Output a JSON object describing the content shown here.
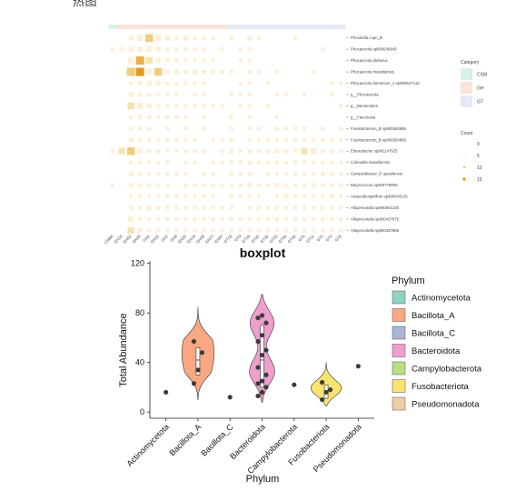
{
  "header_text": "热图",
  "heatmap": {
    "category_legend": {
      "title": "Category",
      "items": [
        {
          "label": "CSM",
          "color": "#d7f0ec"
        },
        {
          "label": "GH",
          "color": "#fde3d8"
        },
        {
          "label": "GT",
          "color": "#e5e8f5"
        }
      ]
    },
    "count_legend": {
      "title": "Count",
      "items": [
        {
          "label": "0",
          "color": "#ffffff"
        },
        {
          "label": "5",
          "color": "#f6e7b8"
        },
        {
          "label": "10",
          "color": "#efc66f"
        },
        {
          "label": "15",
          "color": "#e39a1c"
        }
      ]
    },
    "row_labels": [
      "Prevotella copri_B",
      "Phocaeicola sp900546645",
      "Phocaeicola plebeius",
      "Phocaeicola massiliensis",
      "Phocaeicola bacterium_A sp900547415",
      "g__Phocaeicola",
      "g__Bacteroides",
      "g__Faecousia",
      "Fusobacterium_B sp900554885",
      "Fusobacterium_B sp900554885",
      "Enterobacter sp901147625",
      "Colinsella massiliensis",
      "Campylobacter_D upsaliensis",
      "Butyricoccus sp900776805",
      "Anaerobiospirillum sp900543125",
      "Alloprevotella sp900541330",
      "Alloprevotella sp900437875",
      "Alloprevotella sp900437865"
    ],
    "col_labels": [
      "CSM6",
      "GH10",
      "GH50",
      "GH30",
      "GH4",
      "GH15",
      "GH2",
      "GH9",
      "GH20",
      "GH18",
      "GH38",
      "GH27",
      "GH97",
      "GT19",
      "GT9",
      "GT28",
      "GT26",
      "GT30",
      "GT25",
      "GT56",
      "GT35",
      "GT6",
      "GT11",
      "GT5",
      "GT4",
      "GT8"
    ],
    "col_category": [
      "CSM",
      "GH",
      "GH",
      "GH",
      "GH",
      "GH",
      "GH",
      "GH",
      "GH",
      "GH",
      "GH",
      "GH",
      "GH",
      "GT",
      "GT",
      "GT",
      "GT",
      "GT",
      "GT",
      "GT",
      "GT",
      "GT",
      "GT",
      "GT",
      "GT",
      "GT"
    ],
    "counts": [
      [
        0,
        0,
        2,
        4,
        8,
        4,
        2,
        1,
        2,
        1,
        1,
        1,
        0,
        1,
        0,
        2,
        1,
        0,
        0,
        0,
        1,
        0,
        0,
        0,
        0,
        0
      ],
      [
        1,
        1,
        2,
        3,
        4,
        2,
        1,
        1,
        1,
        1,
        1,
        0,
        1,
        0,
        1,
        1,
        0,
        0,
        0,
        0,
        0,
        0,
        0,
        1,
        0,
        0
      ],
      [
        0,
        0,
        4,
        12,
        6,
        2,
        1,
        1,
        1,
        1,
        1,
        1,
        0,
        0,
        1,
        1,
        0,
        0,
        0,
        0,
        0,
        0,
        0,
        0,
        0,
        0
      ],
      [
        0,
        0,
        10,
        14,
        4,
        8,
        1,
        2,
        1,
        2,
        1,
        1,
        1,
        1,
        0,
        1,
        1,
        0,
        1,
        0,
        0,
        0,
        1,
        0,
        0,
        0
      ],
      [
        0,
        0,
        1,
        2,
        2,
        2,
        1,
        1,
        1,
        1,
        1,
        0,
        0,
        0,
        1,
        1,
        0,
        1,
        0,
        0,
        0,
        0,
        0,
        0,
        1,
        1
      ],
      [
        0,
        0,
        2,
        1,
        1,
        1,
        1,
        1,
        0,
        1,
        1,
        0,
        0,
        1,
        1,
        1,
        0,
        0,
        1,
        1,
        0,
        1,
        0,
        0,
        1,
        0
      ],
      [
        0,
        0,
        6,
        4,
        2,
        1,
        1,
        1,
        1,
        1,
        1,
        1,
        1,
        0,
        1,
        1,
        0,
        1,
        0,
        0,
        0,
        0,
        0,
        0,
        0,
        1
      ],
      [
        0,
        0,
        1,
        2,
        1,
        1,
        1,
        1,
        1,
        0,
        1,
        0,
        0,
        1,
        0,
        1,
        0,
        0,
        1,
        0,
        0,
        0,
        0,
        0,
        0,
        0
      ],
      [
        0,
        0,
        1,
        1,
        1,
        0,
        1,
        0,
        1,
        0,
        1,
        0,
        0,
        1,
        0,
        1,
        1,
        0,
        1,
        1,
        1,
        1,
        0,
        1,
        0,
        1
      ],
      [
        0,
        0,
        2,
        1,
        1,
        1,
        1,
        1,
        1,
        1,
        0,
        1,
        1,
        1,
        0,
        1,
        1,
        1,
        1,
        1,
        1,
        1,
        1,
        1,
        1,
        1
      ],
      [
        1,
        5,
        8,
        2,
        1,
        1,
        1,
        1,
        1,
        1,
        1,
        0,
        1,
        2,
        1,
        1,
        1,
        1,
        2,
        1,
        1,
        5,
        4,
        1,
        1,
        1
      ],
      [
        0,
        0,
        1,
        1,
        1,
        1,
        1,
        0,
        1,
        1,
        0,
        1,
        1,
        1,
        1,
        1,
        1,
        1,
        1,
        1,
        1,
        1,
        1,
        1,
        1,
        1
      ],
      [
        0,
        0,
        2,
        1,
        1,
        1,
        1,
        1,
        1,
        0,
        1,
        1,
        0,
        2,
        1,
        1,
        0,
        1,
        1,
        1,
        1,
        1,
        1,
        1,
        1,
        1
      ],
      [
        1,
        0,
        2,
        1,
        1,
        1,
        1,
        0,
        1,
        1,
        1,
        1,
        1,
        1,
        1,
        2,
        1,
        1,
        2,
        1,
        1,
        1,
        1,
        1,
        1,
        1
      ],
      [
        0,
        0,
        1,
        1,
        1,
        1,
        1,
        1,
        1,
        1,
        1,
        1,
        0,
        2,
        1,
        1,
        1,
        0,
        1,
        2,
        1,
        1,
        1,
        1,
        2,
        1
      ],
      [
        0,
        0,
        1,
        1,
        3,
        1,
        1,
        1,
        1,
        1,
        1,
        1,
        1,
        1,
        0,
        1,
        1,
        1,
        1,
        1,
        1,
        1,
        1,
        1,
        1,
        1
      ],
      [
        0,
        0,
        3,
        1,
        1,
        1,
        1,
        1,
        1,
        1,
        1,
        1,
        1,
        1,
        1,
        1,
        1,
        1,
        1,
        1,
        1,
        1,
        1,
        1,
        1,
        1
      ],
      [
        0,
        0,
        5,
        2,
        1,
        1,
        1,
        1,
        1,
        1,
        1,
        1,
        1,
        1,
        1,
        1,
        1,
        1,
        1,
        1,
        1,
        1,
        1,
        1,
        1,
        1
      ]
    ]
  },
  "chart_data": {
    "type": "violin",
    "title": "boxplot",
    "xlabel": "Phylum",
    "ylabel": "Total Abundance",
    "ylim": [
      -5,
      122
    ],
    "yticks": [
      0,
      40,
      80,
      120
    ],
    "categories": [
      "Actinomycetota",
      "Bacillota_A",
      "Bacillota_C",
      "Bacteroidota",
      "Campylobacterota",
      "Fusobacteriota",
      "Pseudomonadota"
    ],
    "colors": [
      "#8fd3c4",
      "#f9a883",
      "#a9b4d6",
      "#ee9fce",
      "#b9df83",
      "#fae36f",
      "#edcfa5"
    ],
    "points": [
      [
        16
      ],
      [
        23,
        34,
        48,
        57
      ],
      [
        12
      ],
      [
        13,
        16,
        20,
        23,
        25,
        30,
        36,
        46,
        50,
        57,
        62,
        72,
        76,
        78
      ],
      [
        22
      ],
      [
        10,
        16,
        18,
        24
      ],
      [
        37
      ]
    ],
    "violins": [
      null,
      {
        "ymin": 10,
        "ymax": 85,
        "widest_at": [
          35,
          55
        ]
      },
      null,
      {
        "ymin": 8,
        "ymax": 95,
        "widest_at": [
          30,
          75
        ]
      },
      null,
      {
        "ymin": 5,
        "ymax": 40,
        "widest_at": [
          18
        ]
      },
      null
    ],
    "boxes": [
      null,
      {
        "q1": 30,
        "median": 42,
        "q3": 52
      },
      null,
      {
        "q1": 20,
        "median": 42,
        "q3": 70
      },
      null,
      {
        "q1": 11,
        "median": 17,
        "q3": 22
      },
      null
    ],
    "legend": {
      "title": "Phylum",
      "position": "right"
    }
  }
}
